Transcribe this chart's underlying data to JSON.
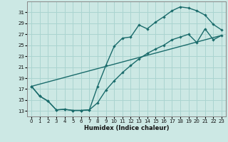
{
  "xlabel": "Humidex (Indice chaleur)",
  "background_color": "#cce8e4",
  "grid_color": "#aad4d0",
  "line_color": "#1a6b6b",
  "xlim": [
    -0.5,
    23.5
  ],
  "ylim": [
    12,
    33
  ],
  "xticks": [
    0,
    1,
    2,
    3,
    4,
    5,
    6,
    7,
    8,
    9,
    10,
    11,
    12,
    13,
    14,
    15,
    16,
    17,
    18,
    19,
    20,
    21,
    22,
    23
  ],
  "yticks": [
    13,
    15,
    17,
    19,
    21,
    23,
    25,
    27,
    29,
    31
  ],
  "curve1_x": [
    0,
    1,
    2,
    3,
    4,
    5,
    6,
    7,
    8,
    9,
    10,
    11,
    12,
    13,
    14,
    15,
    16,
    17,
    18,
    19,
    20,
    21,
    22,
    23
  ],
  "curve1_y": [
    17.5,
    15.7,
    14.8,
    13.2,
    13.3,
    13.1,
    13.1,
    13.2,
    17.5,
    21.3,
    24.8,
    26.3,
    26.5,
    28.7,
    28.0,
    29.2,
    30.2,
    31.3,
    32.0,
    31.8,
    31.3,
    30.5,
    28.8,
    27.8
  ],
  "curve2_x": [
    0,
    1,
    2,
    3,
    4,
    5,
    6,
    7,
    8,
    9,
    10,
    11,
    12,
    13,
    14,
    15,
    16,
    17,
    18,
    19,
    20,
    21,
    22,
    23
  ],
  "curve2_y": [
    17.5,
    15.7,
    14.8,
    13.2,
    13.3,
    13.1,
    13.1,
    13.2,
    14.5,
    16.8,
    18.5,
    20.0,
    21.3,
    22.5,
    23.5,
    24.3,
    25.0,
    26.0,
    26.5,
    27.0,
    25.5,
    28.0,
    26.0,
    26.8
  ],
  "curve3_x": [
    0,
    23
  ],
  "curve3_y": [
    17.5,
    26.8
  ]
}
